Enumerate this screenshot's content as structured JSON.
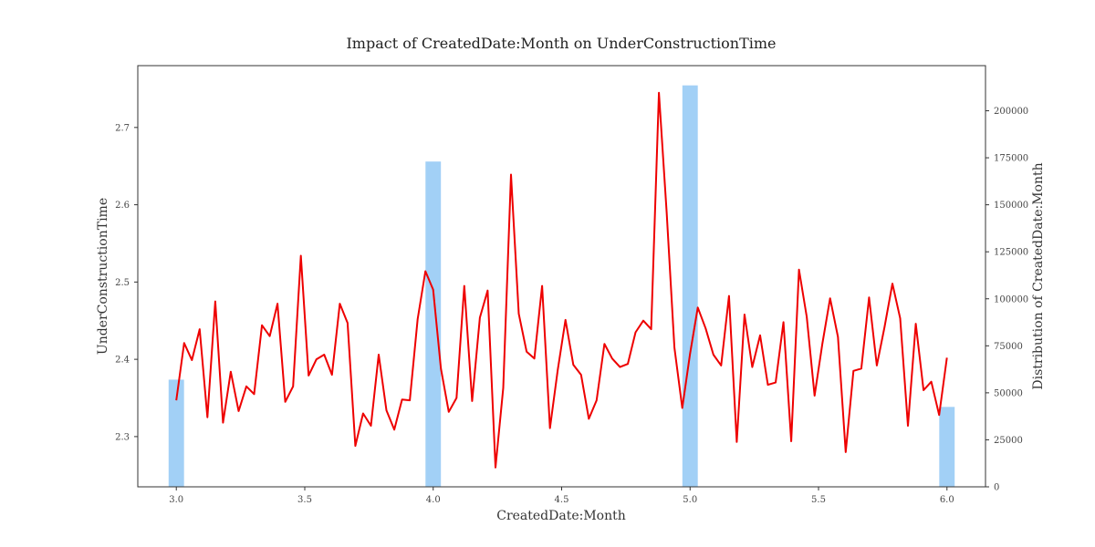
{
  "chart_data": {
    "type": "line+bar",
    "title": "Impact of CreatedDate:Month on UnderConstructionTime",
    "xlabel": "CreatedDate:Month",
    "ylabel": "UnderConstructionTime",
    "y2label": "Distribution of CreatedDate:Month",
    "xlim": [
      2.85,
      6.15
    ],
    "ylim": [
      2.235,
      2.78
    ],
    "y2lim": [
      0,
      224000
    ],
    "xticks": [
      3.0,
      3.5,
      4.0,
      4.5,
      5.0,
      5.5,
      6.0
    ],
    "xtick_labels": [
      "3.0",
      "3.5",
      "4.0",
      "4.5",
      "5.0",
      "5.5",
      "6.0"
    ],
    "yticks": [
      2.3,
      2.4,
      2.5,
      2.6,
      2.7
    ],
    "ytick_labels": [
      "2.3",
      "2.4",
      "2.5",
      "2.6",
      "2.7"
    ],
    "y2ticks": [
      0,
      25000,
      50000,
      75000,
      100000,
      125000,
      150000,
      175000,
      200000
    ],
    "y2tick_labels": [
      "0",
      "25000",
      "50000",
      "75000",
      "100000",
      "125000",
      "150000",
      "175000",
      "200000"
    ],
    "line_series": {
      "name": "UnderConstructionTime",
      "color": "#ee0000",
      "x_start": 3.0,
      "x_step": 0.0303,
      "values": [
        2.347,
        2.421,
        2.399,
        2.439,
        2.325,
        2.475,
        2.318,
        2.384,
        2.333,
        2.365,
        2.355,
        2.444,
        2.43,
        2.472,
        2.345,
        2.365,
        2.534,
        2.379,
        2.4,
        2.406,
        2.38,
        2.472,
        2.447,
        2.288,
        2.33,
        2.314,
        2.406,
        2.334,
        2.309,
        2.348,
        2.347,
        2.452,
        2.514,
        2.49,
        2.388,
        2.332,
        2.35,
        2.495,
        2.346,
        2.454,
        2.489,
        2.26,
        2.363,
        2.639,
        2.459,
        2.41,
        2.401,
        2.495,
        2.311,
        2.386,
        2.451,
        2.393,
        2.38,
        2.323,
        2.347,
        2.42,
        2.401,
        2.39,
        2.394,
        2.435,
        2.45,
        2.439,
        2.745,
        2.59,
        2.415,
        2.337,
        2.407,
        2.467,
        2.44,
        2.406,
        2.392,
        2.482,
        2.293,
        2.458,
        2.39,
        2.431,
        2.367,
        2.37,
        2.448,
        2.294,
        2.516,
        2.455,
        2.353,
        2.42,
        2.479,
        2.429,
        2.28,
        2.385,
        2.388,
        2.48,
        2.392,
        2.442,
        2.498,
        2.453,
        2.314,
        2.446,
        2.36,
        2.371,
        2.328,
        2.402
      ]
    },
    "bar_series": {
      "name": "Distribution of CreatedDate:Month",
      "color": "#9dcef5",
      "x": [
        3.0,
        4.0,
        5.0,
        6.0
      ],
      "values": [
        57000,
        173000,
        213500,
        42500
      ],
      "bar_width": 0.06
    }
  }
}
